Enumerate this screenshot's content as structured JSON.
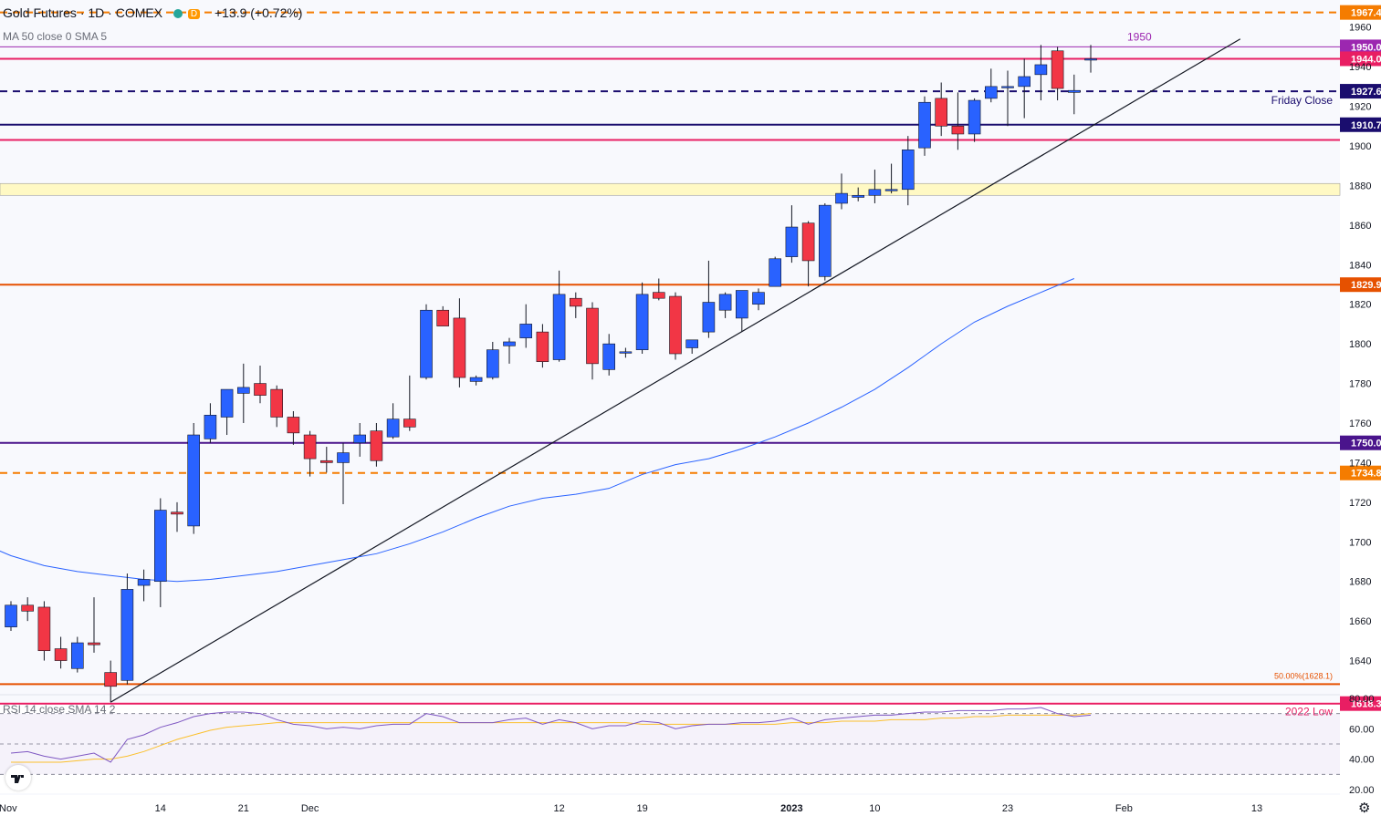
{
  "header": {
    "symbol": "Gold Futures · 1D · COMEX",
    "badge": "D",
    "change": "+13.9 (+0.72%)",
    "ma_label": "MA 50 close 0 SMA 5",
    "rsi_label": "RSI 14 close SMA 14 2"
  },
  "colors": {
    "up": "#2962ff",
    "down": "#f23645",
    "ma": "#2962ff",
    "navy": "#1a0d6e",
    "purple": "#4a148c",
    "orange": "#e65100",
    "crimson": "#e91e63",
    "zone": "#fff9c4",
    "rsi": "#7e57c2",
    "rsi_ma": "#fbc02d"
  },
  "chart_data": {
    "type": "candlestick",
    "title": "Gold Futures · 1D · COMEX",
    "ylim": [
      1620,
      1970
    ],
    "y_ticks": [
      1640,
      1660,
      1680,
      1700,
      1720,
      1740,
      1760,
      1780,
      1800,
      1820,
      1840,
      1860,
      1880,
      1900,
      1920,
      1940,
      1960
    ],
    "x_ticks": [
      {
        "label": "Nov",
        "idx": -1
      },
      {
        "label": "14",
        "idx": 9
      },
      {
        "label": "21",
        "idx": 14
      },
      {
        "label": "Dec",
        "idx": 18
      },
      {
        "label": "12",
        "idx": 33
      },
      {
        "label": "19",
        "idx": 38
      },
      {
        "label": "2023",
        "idx": 47
      },
      {
        "label": "10",
        "idx": 52
      },
      {
        "label": "23",
        "idx": 60
      },
      {
        "label": "Feb",
        "idx": 67
      },
      {
        "label": "13",
        "idx": 75
      }
    ],
    "candles": [
      {
        "o": 1657,
        "h": 1670,
        "l": 1655,
        "c": 1668
      },
      {
        "o": 1668,
        "h": 1672,
        "l": 1660,
        "c": 1665
      },
      {
        "o": 1667,
        "h": 1670,
        "l": 1640,
        "c": 1645
      },
      {
        "o": 1646,
        "h": 1652,
        "l": 1636,
        "c": 1640
      },
      {
        "o": 1636,
        "h": 1652,
        "l": 1634,
        "c": 1649
      },
      {
        "o": 1649,
        "h": 1672,
        "l": 1644,
        "c": 1648
      },
      {
        "o": 1634,
        "h": 1640,
        "l": 1619,
        "c": 1627
      },
      {
        "o": 1630,
        "h": 1684,
        "l": 1628,
        "c": 1676
      },
      {
        "o": 1678,
        "h": 1686,
        "l": 1670,
        "c": 1681
      },
      {
        "o": 1680,
        "h": 1722,
        "l": 1667,
        "c": 1716
      },
      {
        "o": 1715,
        "h": 1720,
        "l": 1705,
        "c": 1714
      },
      {
        "o": 1708,
        "h": 1760,
        "l": 1704,
        "c": 1754
      },
      {
        "o": 1752,
        "h": 1770,
        "l": 1750,
        "c": 1764
      },
      {
        "o": 1763,
        "h": 1777,
        "l": 1754,
        "c": 1777
      },
      {
        "o": 1775,
        "h": 1790,
        "l": 1760,
        "c": 1778
      },
      {
        "o": 1780,
        "h": 1789,
        "l": 1770,
        "c": 1774
      },
      {
        "o": 1777,
        "h": 1779,
        "l": 1758,
        "c": 1763
      },
      {
        "o": 1763,
        "h": 1766,
        "l": 1749,
        "c": 1755
      },
      {
        "o": 1754,
        "h": 1756,
        "l": 1733,
        "c": 1742
      },
      {
        "o": 1741,
        "h": 1748,
        "l": 1735,
        "c": 1740
      },
      {
        "o": 1740,
        "h": 1750,
        "l": 1719,
        "c": 1745
      },
      {
        "o": 1750,
        "h": 1760,
        "l": 1743,
        "c": 1754
      },
      {
        "o": 1756,
        "h": 1760,
        "l": 1738,
        "c": 1741
      },
      {
        "o": 1753,
        "h": 1770,
        "l": 1752,
        "c": 1762
      },
      {
        "o": 1762,
        "h": 1784,
        "l": 1756,
        "c": 1758
      },
      {
        "o": 1783,
        "h": 1820,
        "l": 1782,
        "c": 1817
      },
      {
        "o": 1817,
        "h": 1819,
        "l": 1809,
        "c": 1809
      },
      {
        "o": 1813,
        "h": 1823,
        "l": 1778,
        "c": 1783
      },
      {
        "o": 1781,
        "h": 1784,
        "l": 1779,
        "c": 1783
      },
      {
        "o": 1783,
        "h": 1801,
        "l": 1782,
        "c": 1797
      },
      {
        "o": 1799,
        "h": 1803,
        "l": 1790,
        "c": 1801
      },
      {
        "o": 1803,
        "h": 1820,
        "l": 1798,
        "c": 1810
      },
      {
        "o": 1806,
        "h": 1810,
        "l": 1788,
        "c": 1791
      },
      {
        "o": 1792,
        "h": 1837,
        "l": 1791,
        "c": 1825
      },
      {
        "o": 1823,
        "h": 1826,
        "l": 1813,
        "c": 1819
      },
      {
        "o": 1818,
        "h": 1821,
        "l": 1782,
        "c": 1790
      },
      {
        "o": 1787,
        "h": 1805,
        "l": 1784,
        "c": 1800
      },
      {
        "o": 1796,
        "h": 1798,
        "l": 1793,
        "c": 1796
      },
      {
        "o": 1797,
        "h": 1831,
        "l": 1795,
        "c": 1825
      },
      {
        "o": 1826,
        "h": 1833,
        "l": 1822,
        "c": 1823
      },
      {
        "o": 1824,
        "h": 1826,
        "l": 1792,
        "c": 1795
      },
      {
        "o": 1798,
        "h": 1802,
        "l": 1795,
        "c": 1802
      },
      {
        "o": 1806,
        "h": 1842,
        "l": 1803,
        "c": 1821
      },
      {
        "o": 1817,
        "h": 1826,
        "l": 1813,
        "c": 1825
      },
      {
        "o": 1813,
        "h": 1826,
        "l": 1806,
        "c": 1827
      },
      {
        "o": 1820,
        "h": 1828,
        "l": 1817,
        "c": 1826
      },
      {
        "o": 1829,
        "h": 1844,
        "l": 1829,
        "c": 1843
      },
      {
        "o": 1844,
        "h": 1870,
        "l": 1841,
        "c": 1859
      },
      {
        "o": 1861,
        "h": 1862,
        "l": 1829,
        "c": 1842
      },
      {
        "o": 1834,
        "h": 1871,
        "l": 1832,
        "c": 1870
      },
      {
        "o": 1871,
        "h": 1886,
        "l": 1868,
        "c": 1876
      },
      {
        "o": 1874,
        "h": 1879,
        "l": 1872,
        "c": 1875
      },
      {
        "o": 1875,
        "h": 1888,
        "l": 1871,
        "c": 1878
      },
      {
        "o": 1878,
        "h": 1891,
        "l": 1876,
        "c": 1878
      },
      {
        "o": 1878,
        "h": 1905,
        "l": 1870,
        "c": 1898
      },
      {
        "o": 1899,
        "h": 1925,
        "l": 1895,
        "c": 1922
      },
      {
        "o": 1924,
        "h": 1932,
        "l": 1905,
        "c": 1910
      },
      {
        "o": 1910,
        "h": 1927,
        "l": 1898,
        "c": 1906
      },
      {
        "o": 1906,
        "h": 1924,
        "l": 1902,
        "c": 1923
      },
      {
        "o": 1924,
        "h": 1939,
        "l": 1922,
        "c": 1930
      },
      {
        "o": 1930,
        "h": 1938,
        "l": 1910,
        "c": 1930
      },
      {
        "o": 1930,
        "h": 1944,
        "l": 1914,
        "c": 1935
      },
      {
        "o": 1936,
        "h": 1951,
        "l": 1923,
        "c": 1941
      },
      {
        "o": 1948,
        "h": 1950,
        "l": 1923,
        "c": 1929
      },
      {
        "o": 1927,
        "h": 1936,
        "l": 1916,
        "c": 1928
      },
      {
        "o": 1944,
        "h": 1951,
        "l": 1937,
        "c": 1944
      }
    ],
    "series": [
      {
        "name": "MA 50 close 0 SMA 5",
        "points": [
          [
            -2,
            1700
          ],
          [
            0,
            1693
          ],
          [
            2,
            1688
          ],
          [
            4,
            1685
          ],
          [
            6,
            1683
          ],
          [
            8,
            1681
          ],
          [
            10,
            1680
          ],
          [
            12,
            1681
          ],
          [
            14,
            1683
          ],
          [
            16,
            1685
          ],
          [
            18,
            1688
          ],
          [
            20,
            1691
          ],
          [
            22,
            1694
          ],
          [
            24,
            1699
          ],
          [
            26,
            1705
          ],
          [
            28,
            1712
          ],
          [
            30,
            1718
          ],
          [
            32,
            1722
          ],
          [
            34,
            1724
          ],
          [
            36,
            1727
          ],
          [
            38,
            1734
          ],
          [
            40,
            1739
          ],
          [
            42,
            1742
          ],
          [
            44,
            1747
          ],
          [
            46,
            1753
          ],
          [
            48,
            1760
          ],
          [
            50,
            1768
          ],
          [
            52,
            1777
          ],
          [
            54,
            1788
          ],
          [
            56,
            1800
          ],
          [
            58,
            1811
          ],
          [
            60,
            1819
          ],
          [
            62,
            1826
          ],
          [
            64,
            1833
          ]
        ]
      }
    ],
    "levels": [
      {
        "price": 1967.4,
        "label": "1967.4",
        "style": "dashed",
        "color": "#f57c00"
      },
      {
        "price": 1950.0,
        "label": "1950.0",
        "style": "solid",
        "color": "#9c27b0"
      },
      {
        "price": 1944.0,
        "label": "1944.0",
        "style": "solid",
        "color": "#e91e63"
      },
      {
        "price": 1927.6,
        "label": "1927.6",
        "style": "dashed",
        "color": "#1a0d6e"
      },
      {
        "price": 1910.7,
        "label": "1910.7",
        "style": "solid",
        "color": "#1a0d6e"
      },
      {
        "price": 1903.0,
        "label": "",
        "style": "solid",
        "color": "#e91e63"
      },
      {
        "price": 1829.9,
        "label": "1829.9",
        "style": "solid",
        "color": "#e65100"
      },
      {
        "price": 1750.0,
        "label": "1750.0",
        "style": "solid",
        "color": "#4a148c"
      },
      {
        "price": 1734.8,
        "label": "1734.8",
        "style": "dashed",
        "color": "#f57c00"
      },
      {
        "price": 1628.1,
        "label": "",
        "style": "solid",
        "color": "#e65100"
      },
      {
        "price": 1618.3,
        "label": "1618.3",
        "style": "solid",
        "color": "#e91e63"
      }
    ],
    "zone": {
      "from": 1875,
      "to": 1881
    },
    "trendline": {
      "from": [
        6,
        1619
      ],
      "to": [
        74,
        1954
      ]
    },
    "annotations": [
      {
        "text": "1950",
        "idx": 65,
        "price": 1950
      },
      {
        "text": "Friday Close",
        "idx": 73,
        "price": 1927.6
      },
      {
        "text": "50.00%(1628.1)",
        "idx": 73,
        "price": 1628.1
      },
      {
        "text": "2022 Low",
        "idx": 73,
        "price": 1618.3
      }
    ],
    "rsi": {
      "ylim": [
        20,
        80
      ],
      "y_ticks": [
        20,
        40,
        60,
        80
      ],
      "bands": [
        30,
        50,
        70
      ],
      "values": [
        44,
        45,
        42,
        40,
        42,
        44,
        38,
        53,
        56,
        61,
        64,
        68,
        70,
        71,
        71,
        70,
        66,
        63,
        62,
        60,
        61,
        60,
        62,
        63,
        63,
        70,
        68,
        64,
        64,
        64,
        66,
        67,
        63,
        66,
        64,
        60,
        62,
        62,
        65,
        64,
        60,
        62,
        63,
        63,
        64,
        64,
        65,
        67,
        63,
        66,
        67,
        68,
        69,
        69,
        70,
        71,
        71,
        72,
        72,
        72,
        73,
        73,
        74,
        70,
        68,
        69
      ],
      "ma_values": [
        38,
        38,
        38,
        38,
        39,
        40,
        40,
        42,
        45,
        49,
        53,
        56,
        59,
        61,
        62,
        63,
        64,
        64,
        64,
        64,
        64,
        64,
        64,
        64,
        64,
        64,
        64,
        64,
        64,
        64,
        64,
        64,
        64,
        64,
        64,
        64,
        64,
        64,
        63,
        63,
        63,
        63,
        63,
        63,
        63,
        63,
        63,
        64,
        64,
        64,
        65,
        65,
        65,
        66,
        66,
        66,
        67,
        67,
        68,
        68,
        69,
        69,
        69,
        69,
        69,
        70
      ]
    }
  }
}
